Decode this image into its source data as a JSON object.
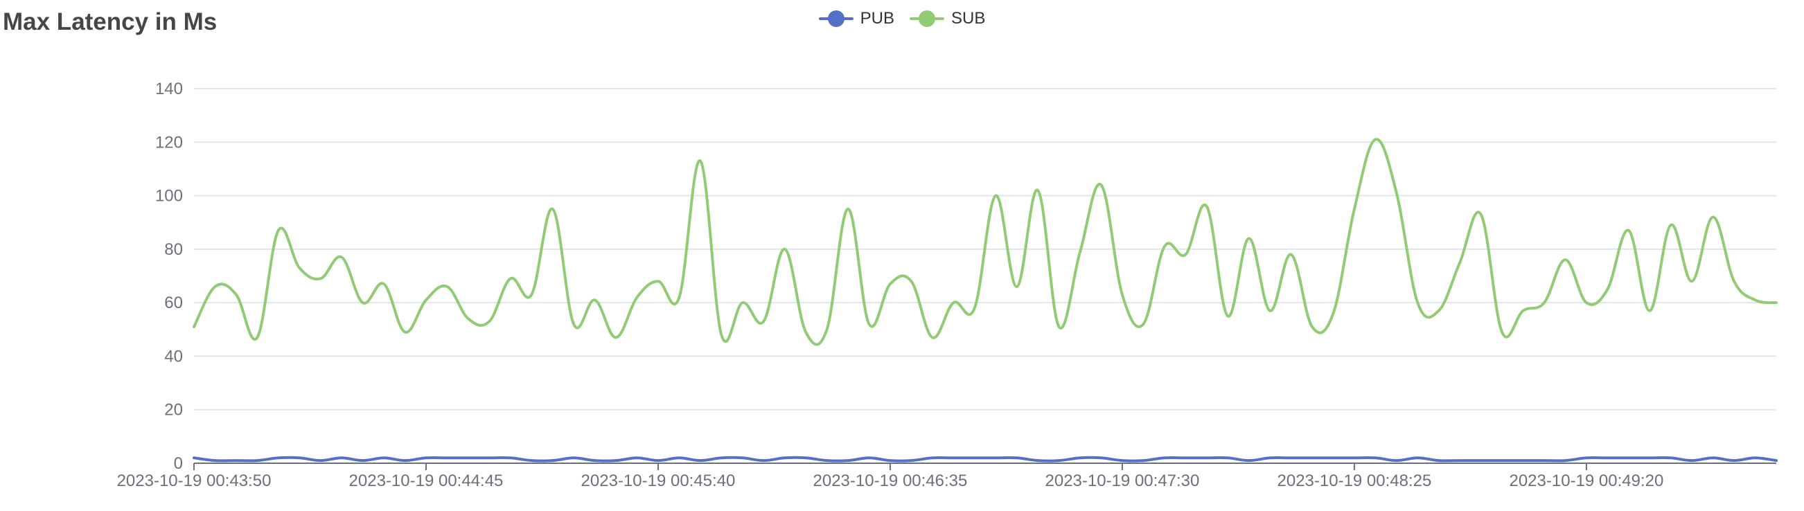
{
  "chart_data": {
    "type": "line",
    "title": "Max Latency in Ms",
    "xlabel": "",
    "ylabel": "",
    "ylim": [
      0,
      140
    ],
    "yticks": [
      0,
      20,
      40,
      60,
      80,
      100,
      120,
      140
    ],
    "grid": true,
    "legend_position": "top-center",
    "x_tick_labels": [
      "2023-10-19 00:43:50",
      "2023-10-19 00:44:45",
      "2023-10-19 00:45:40",
      "2023-10-19 00:46:35",
      "2023-10-19 00:47:30",
      "2023-10-19 00:48:25",
      "2023-10-19 00:49:20"
    ],
    "x_tick_index": [
      0,
      11,
      22,
      33,
      44,
      55,
      66
    ],
    "point_count": 76,
    "series": [
      {
        "name": "PUB",
        "color": "#5470c6",
        "values": [
          2,
          1,
          1,
          1,
          2,
          2,
          1,
          2,
          1,
          2,
          1,
          2,
          2,
          2,
          2,
          2,
          1,
          1,
          2,
          1,
          1,
          2,
          1,
          2,
          1,
          2,
          2,
          1,
          2,
          2,
          1,
          1,
          2,
          1,
          1,
          2,
          2,
          2,
          2,
          2,
          1,
          1,
          2,
          2,
          1,
          1,
          2,
          2,
          2,
          2,
          1,
          2,
          2,
          2,
          2,
          2,
          2,
          1,
          2,
          1,
          1,
          1,
          1,
          1,
          1,
          1,
          2,
          2,
          2,
          2,
          2,
          1,
          2,
          1,
          2,
          1
        ]
      },
      {
        "name": "SUB",
        "color": "#91cc75",
        "values": [
          51,
          66,
          63,
          47,
          87,
          73,
          69,
          77,
          60,
          67,
          49,
          61,
          66,
          54,
          53,
          69,
          63,
          95,
          52,
          61,
          47,
          62,
          68,
          62,
          113,
          48,
          60,
          53,
          80,
          49,
          50,
          95,
          52,
          67,
          68,
          47,
          60,
          58,
          100,
          66,
          102,
          51,
          79,
          104,
          63,
          52,
          81,
          78,
          96,
          55,
          84,
          57,
          78,
          51,
          56,
          95,
          121,
          101,
          60,
          57,
          75,
          93,
          49,
          57,
          60,
          76,
          60,
          65,
          87,
          57,
          89,
          68,
          92,
          68,
          61,
          60
        ]
      }
    ]
  }
}
